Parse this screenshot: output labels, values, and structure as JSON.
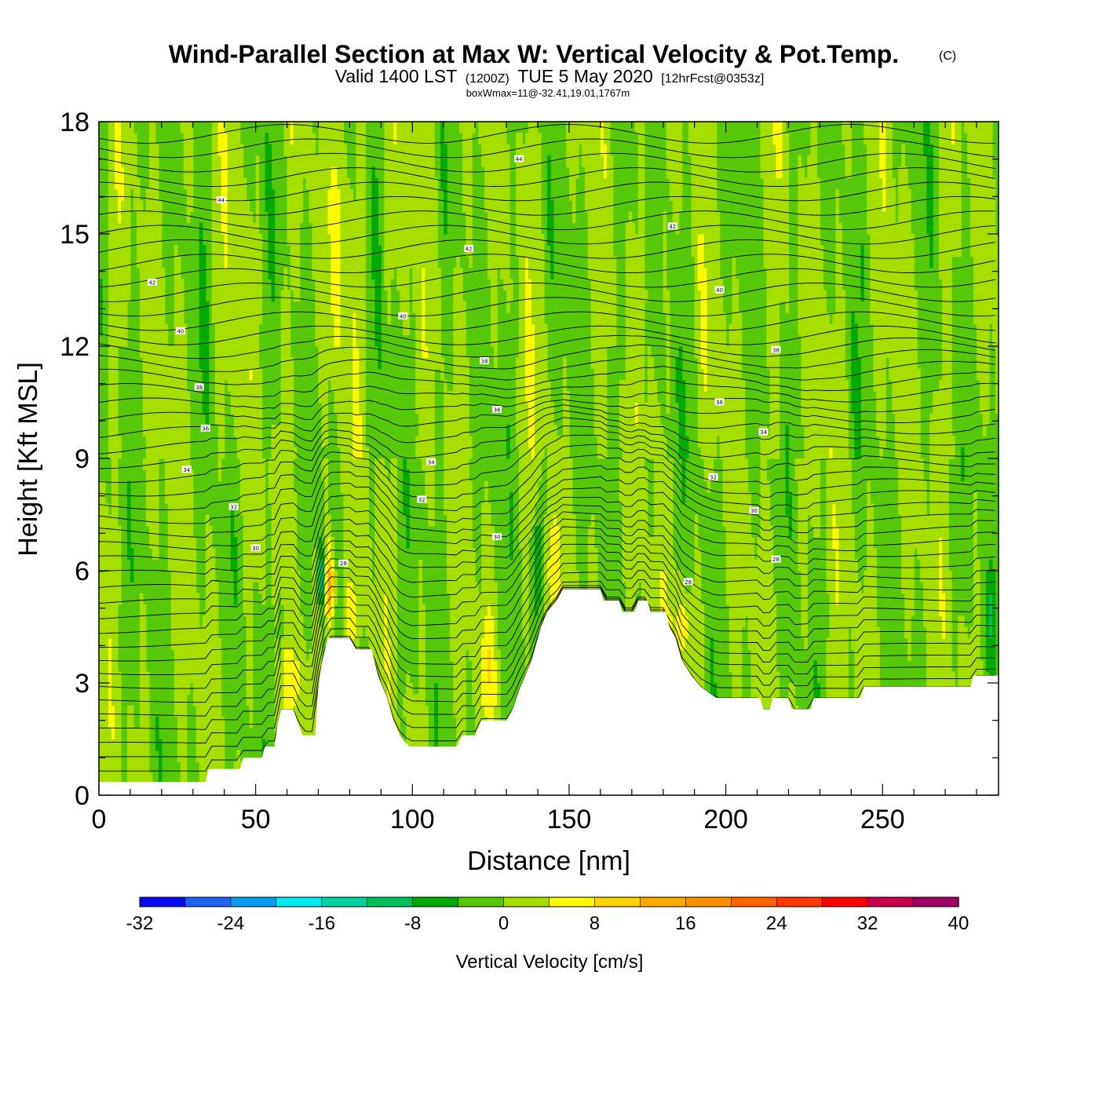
{
  "chart_data": {
    "type": "heatmap",
    "title": "Wind-Parallel Section at Max W: Vertical Velocity & Pot.Temp.",
    "copyright": "(C)",
    "subtitle": {
      "valid": "Valid 1400 LST",
      "utc": "(1200Z)",
      "date": "TUE 5 May 2020",
      "forecast": "[12hrFcst@0353z]"
    },
    "box_wmax": "boxWmax=11@-32.41,19.01,1767m",
    "xlabel": "Distance [nm]",
    "ylabel": "Height [Kft MSL]",
    "xlim": [
      0,
      287
    ],
    "ylim": [
      0,
      18
    ],
    "x_ticks": [
      0,
      50,
      100,
      150,
      200,
      250
    ],
    "y_ticks": [
      0,
      3,
      6,
      9,
      12,
      15,
      18
    ],
    "colorbar": {
      "label": "Vertical Velocity [cm/s]",
      "ticks": [
        "-32",
        "-24",
        "-16",
        "-8",
        "0",
        "8",
        "16",
        "24",
        "32",
        "40"
      ],
      "bin_edges": [
        -32,
        -28,
        -24,
        -20,
        -16,
        -12,
        -8,
        -4,
        0,
        4,
        8,
        12,
        16,
        20,
        24,
        28,
        32,
        36,
        40
      ],
      "colors": [
        "#0a0af0",
        "#1e64ee",
        "#0a9cf0",
        "#00eef0",
        "#00d2a0",
        "#00c05a",
        "#00aa00",
        "#56c80a",
        "#a6de00",
        "#fffa00",
        "#ffd200",
        "#ffaa00",
        "#ff9100",
        "#ff6400",
        "#ff3700",
        "#ff0000",
        "#c8004b",
        "#a00064"
      ]
    },
    "terrain": [
      [
        0,
        0.35
      ],
      [
        10,
        0.35
      ],
      [
        20,
        0.35
      ],
      [
        34,
        0.35
      ],
      [
        35,
        0.7
      ],
      [
        45,
        0.7
      ],
      [
        46,
        1.0
      ],
      [
        52,
        1.0
      ],
      [
        53,
        1.3
      ],
      [
        56,
        1.3
      ],
      [
        57,
        1.9
      ],
      [
        58,
        2.3
      ],
      [
        62,
        2.3
      ],
      [
        65,
        1.6
      ],
      [
        69,
        1.6
      ],
      [
        70,
        2.9
      ],
      [
        71,
        3.5
      ],
      [
        73,
        4.2
      ],
      [
        80,
        4.2
      ],
      [
        82,
        3.9
      ],
      [
        87,
        3.9
      ],
      [
        89,
        3.2
      ],
      [
        92,
        2.6
      ],
      [
        94,
        2.0
      ],
      [
        96,
        1.6
      ],
      [
        99,
        1.3
      ],
      [
        114,
        1.3
      ],
      [
        116,
        1.6
      ],
      [
        120,
        1.6
      ],
      [
        122,
        2.0
      ],
      [
        130,
        2.0
      ],
      [
        132,
        2.3
      ],
      [
        134,
        2.8
      ],
      [
        136,
        3.2
      ],
      [
        138,
        3.6
      ],
      [
        141,
        4.5
      ],
      [
        143,
        4.9
      ],
      [
        146,
        5.2
      ],
      [
        148,
        5.5
      ],
      [
        160,
        5.5
      ],
      [
        161,
        5.2
      ],
      [
        166,
        5.2
      ],
      [
        167,
        4.9
      ],
      [
        171,
        4.9
      ],
      [
        172,
        5.2
      ],
      [
        175,
        5.2
      ],
      [
        176,
        4.9
      ],
      [
        181,
        4.9
      ],
      [
        182,
        4.5
      ],
      [
        184,
        4.2
      ],
      [
        186,
        3.6
      ],
      [
        189,
        3.2
      ],
      [
        192,
        2.9
      ],
      [
        197,
        2.6
      ],
      [
        211,
        2.6
      ],
      [
        212,
        2.3
      ],
      [
        214,
        2.3
      ],
      [
        215,
        2.6
      ],
      [
        220,
        2.6
      ],
      [
        221,
        2.3
      ],
      [
        227,
        2.3
      ],
      [
        228,
        2.6
      ],
      [
        243,
        2.6
      ],
      [
        244,
        2.9
      ],
      [
        278,
        2.9
      ],
      [
        279,
        3.2
      ],
      [
        287,
        3.2
      ]
    ],
    "isentrope_labels": [
      {
        "x": 39,
        "y": 15.9,
        "text": "44"
      },
      {
        "x": 134,
        "y": 17.0,
        "text": "44"
      },
      {
        "x": 17,
        "y": 13.7,
        "text": "42"
      },
      {
        "x": 118,
        "y": 14.6,
        "text": "42"
      },
      {
        "x": 183,
        "y": 15.2,
        "text": "42"
      },
      {
        "x": 26,
        "y": 12.4,
        "text": "40"
      },
      {
        "x": 97,
        "y": 12.8,
        "text": "40"
      },
      {
        "x": 198,
        "y": 13.5,
        "text": "40"
      },
      {
        "x": 32,
        "y": 10.9,
        "text": "38"
      },
      {
        "x": 123,
        "y": 11.6,
        "text": "38"
      },
      {
        "x": 216,
        "y": 11.9,
        "text": "38"
      },
      {
        "x": 34,
        "y": 9.8,
        "text": "36"
      },
      {
        "x": 127,
        "y": 10.3,
        "text": "36"
      },
      {
        "x": 198,
        "y": 10.5,
        "text": "36"
      },
      {
        "x": 28,
        "y": 8.7,
        "text": "34"
      },
      {
        "x": 106,
        "y": 8.9,
        "text": "34"
      },
      {
        "x": 212,
        "y": 9.7,
        "text": "34"
      },
      {
        "x": 43,
        "y": 7.7,
        "text": "32"
      },
      {
        "x": 103,
        "y": 7.9,
        "text": "32"
      },
      {
        "x": 196,
        "y": 8.5,
        "text": "32"
      },
      {
        "x": 50,
        "y": 6.6,
        "text": "30"
      },
      {
        "x": 127,
        "y": 6.9,
        "text": "30"
      },
      {
        "x": 209,
        "y": 7.6,
        "text": "30"
      },
      {
        "x": 78,
        "y": 6.2,
        "text": "28"
      },
      {
        "x": 188,
        "y": 5.7,
        "text": "28"
      },
      {
        "x": 216,
        "y": 6.3,
        "text": "28"
      }
    ]
  }
}
